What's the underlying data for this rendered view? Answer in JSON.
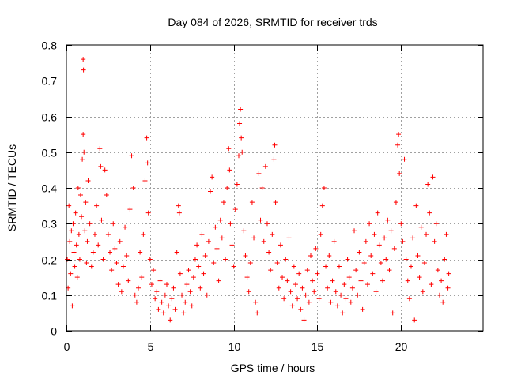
{
  "chart_data": {
    "type": "scatter",
    "title": "Day 084 of 2026, SRMTID for receiver trds",
    "xlabel": "GPS time / hours",
    "ylabel": "SRMTID / TECUs",
    "xlim": [
      0,
      24.9
    ],
    "ylim": [
      0,
      0.8
    ],
    "x_ticks": [
      0,
      5,
      10,
      15,
      20
    ],
    "x_tick_labels": [
      "0",
      "5",
      "10",
      "15",
      "20"
    ],
    "y_ticks": [
      0,
      0.1,
      0.2,
      0.3,
      0.4,
      0.5,
      0.6,
      0.7,
      0.8
    ],
    "y_tick_labels": [
      "0",
      "0.1",
      "0.2",
      "0.3",
      "0.4",
      "0.5",
      "0.6",
      "0.7",
      "0.8"
    ],
    "grid": true,
    "marker": "plus",
    "color": "#ff0000",
    "series": [
      {
        "name": "SRMTID",
        "points": [
          [
            0.05,
            0.2
          ],
          [
            0.1,
            0.12
          ],
          [
            0.15,
            0.35
          ],
          [
            0.2,
            0.25
          ],
          [
            0.25,
            0.16
          ],
          [
            0.3,
            0.28
          ],
          [
            0.35,
            0.07
          ],
          [
            0.4,
            0.3
          ],
          [
            0.45,
            0.22
          ],
          [
            0.5,
            0.18
          ],
          [
            0.55,
            0.33
          ],
          [
            0.6,
            0.24
          ],
          [
            0.65,
            0.15
          ],
          [
            0.7,
            0.4
          ],
          [
            0.75,
            0.27
          ],
          [
            0.8,
            0.2
          ],
          [
            0.85,
            0.38
          ],
          [
            0.9,
            0.32
          ],
          [
            0.95,
            0.48
          ],
          [
            1.0,
            0.55
          ],
          [
            1.0,
            0.76
          ],
          [
            1.02,
            0.73
          ],
          [
            1.05,
            0.5
          ],
          [
            1.1,
            0.28
          ],
          [
            1.15,
            0.36
          ],
          [
            1.2,
            0.19
          ],
          [
            1.25,
            0.25
          ],
          [
            1.3,
            0.42
          ],
          [
            1.4,
            0.3
          ],
          [
            1.5,
            0.18
          ],
          [
            1.6,
            0.22
          ],
          [
            1.7,
            0.27
          ],
          [
            1.8,
            0.35
          ],
          [
            1.9,
            0.24
          ],
          [
            2.0,
            0.51
          ],
          [
            2.05,
            0.46
          ],
          [
            2.1,
            0.31
          ],
          [
            2.2,
            0.2
          ],
          [
            2.3,
            0.45
          ],
          [
            2.4,
            0.38
          ],
          [
            2.5,
            0.27
          ],
          [
            2.6,
            0.22
          ],
          [
            2.7,
            0.17
          ],
          [
            2.8,
            0.3
          ],
          [
            2.9,
            0.23
          ],
          [
            3.0,
            0.19
          ],
          [
            3.1,
            0.13
          ],
          [
            3.2,
            0.25
          ],
          [
            3.3,
            0.11
          ],
          [
            3.4,
            0.18
          ],
          [
            3.5,
            0.29
          ],
          [
            3.6,
            0.21
          ],
          [
            3.7,
            0.14
          ],
          [
            3.8,
            0.34
          ],
          [
            3.9,
            0.49
          ],
          [
            4.0,
            0.4
          ],
          [
            4.1,
            0.1
          ],
          [
            4.2,
            0.08
          ],
          [
            4.3,
            0.12
          ],
          [
            4.4,
            0.22
          ],
          [
            4.5,
            0.15
          ],
          [
            4.6,
            0.27
          ],
          [
            4.7,
            0.42
          ],
          [
            4.8,
            0.54
          ],
          [
            4.85,
            0.47
          ],
          [
            4.9,
            0.33
          ],
          [
            5.0,
            0.2
          ],
          [
            5.1,
            0.13
          ],
          [
            5.2,
            0.17
          ],
          [
            5.3,
            0.09
          ],
          [
            5.4,
            0.11
          ],
          [
            5.5,
            0.06
          ],
          [
            5.6,
            0.14
          ],
          [
            5.7,
            0.08
          ],
          [
            5.8,
            0.05
          ],
          [
            5.9,
            0.1
          ],
          [
            6.0,
            0.13
          ],
          [
            6.1,
            0.07
          ],
          [
            6.2,
            0.03
          ],
          [
            6.3,
            0.09
          ],
          [
            6.4,
            0.12
          ],
          [
            6.5,
            0.06
          ],
          [
            6.6,
            0.22
          ],
          [
            6.7,
            0.35
          ],
          [
            6.75,
            0.33
          ],
          [
            6.8,
            0.16
          ],
          [
            6.9,
            0.1
          ],
          [
            7.0,
            0.05
          ],
          [
            7.1,
            0.08
          ],
          [
            7.2,
            0.13
          ],
          [
            7.3,
            0.17
          ],
          [
            7.4,
            0.11
          ],
          [
            7.5,
            0.07
          ],
          [
            7.6,
            0.15
          ],
          [
            7.7,
            0.2
          ],
          [
            7.8,
            0.24
          ],
          [
            7.9,
            0.18
          ],
          [
            8.0,
            0.12
          ],
          [
            8.1,
            0.27
          ],
          [
            8.2,
            0.16
          ],
          [
            8.3,
            0.21
          ],
          [
            8.4,
            0.1
          ],
          [
            8.5,
            0.25
          ],
          [
            8.6,
            0.39
          ],
          [
            8.7,
            0.43
          ],
          [
            8.8,
            0.19
          ],
          [
            8.9,
            0.29
          ],
          [
            9.0,
            0.23
          ],
          [
            9.1,
            0.14
          ],
          [
            9.2,
            0.31
          ],
          [
            9.3,
            0.26
          ],
          [
            9.4,
            0.36
          ],
          [
            9.5,
            0.2
          ],
          [
            9.6,
            0.4
          ],
          [
            9.7,
            0.51
          ],
          [
            9.75,
            0.45
          ],
          [
            9.8,
            0.3
          ],
          [
            9.9,
            0.24
          ],
          [
            10.0,
            0.18
          ],
          [
            10.1,
            0.34
          ],
          [
            10.2,
            0.41
          ],
          [
            10.3,
            0.49
          ],
          [
            10.35,
            0.58
          ],
          [
            10.4,
            0.62
          ],
          [
            10.45,
            0.54
          ],
          [
            10.5,
            0.5
          ],
          [
            10.6,
            0.28
          ],
          [
            10.7,
            0.21
          ],
          [
            10.8,
            0.15
          ],
          [
            10.9,
            0.11
          ],
          [
            11.0,
            0.19
          ],
          [
            11.1,
            0.36
          ],
          [
            11.2,
            0.26
          ],
          [
            11.3,
            0.08
          ],
          [
            11.4,
            0.05
          ],
          [
            11.5,
            0.44
          ],
          [
            11.6,
            0.31
          ],
          [
            11.7,
            0.4
          ],
          [
            11.8,
            0.25
          ],
          [
            11.9,
            0.46
          ],
          [
            12.0,
            0.3
          ],
          [
            12.1,
            0.22
          ],
          [
            12.2,
            0.17
          ],
          [
            12.3,
            0.27
          ],
          [
            12.4,
            0.48
          ],
          [
            12.45,
            0.52
          ],
          [
            12.5,
            0.36
          ],
          [
            12.6,
            0.19
          ],
          [
            12.7,
            0.12
          ],
          [
            12.8,
            0.24
          ],
          [
            12.9,
            0.15
          ],
          [
            13.0,
            0.09
          ],
          [
            13.1,
            0.2
          ],
          [
            13.2,
            0.14
          ],
          [
            13.3,
            0.26
          ],
          [
            13.4,
            0.11
          ],
          [
            13.5,
            0.07
          ],
          [
            13.6,
            0.18
          ],
          [
            13.7,
            0.13
          ],
          [
            13.8,
            0.09
          ],
          [
            13.9,
            0.16
          ],
          [
            14.0,
            0.06
          ],
          [
            14.1,
            0.12
          ],
          [
            14.2,
            0.03
          ],
          [
            14.3,
            0.1
          ],
          [
            14.4,
            0.17
          ],
          [
            14.5,
            0.08
          ],
          [
            14.6,
            0.21
          ],
          [
            14.7,
            0.14
          ],
          [
            14.8,
            0.11
          ],
          [
            14.9,
            0.23
          ],
          [
            15.0,
            0.16
          ],
          [
            15.1,
            0.09
          ],
          [
            15.2,
            0.27
          ],
          [
            15.3,
            0.35
          ],
          [
            15.4,
            0.4
          ],
          [
            15.5,
            0.18
          ],
          [
            15.6,
            0.12
          ],
          [
            15.7,
            0.21
          ],
          [
            15.8,
            0.08
          ],
          [
            15.9,
            0.14
          ],
          [
            16.0,
            0.25
          ],
          [
            16.1,
            0.11
          ],
          [
            16.2,
            0.07
          ],
          [
            16.3,
            0.18
          ],
          [
            16.4,
            0.1
          ],
          [
            16.5,
            0.05
          ],
          [
            16.6,
            0.13
          ],
          [
            16.7,
            0.09
          ],
          [
            16.8,
            0.2
          ],
          [
            16.9,
            0.15
          ],
          [
            17.0,
            0.08
          ],
          [
            17.1,
            0.12
          ],
          [
            17.2,
            0.28
          ],
          [
            17.3,
            0.17
          ],
          [
            17.4,
            0.1
          ],
          [
            17.5,
            0.22
          ],
          [
            17.6,
            0.14
          ],
          [
            17.7,
            0.06
          ],
          [
            17.8,
            0.19
          ],
          [
            17.9,
            0.25
          ],
          [
            18.0,
            0.13
          ],
          [
            18.1,
            0.3
          ],
          [
            18.2,
            0.21
          ],
          [
            18.3,
            0.16
          ],
          [
            18.4,
            0.27
          ],
          [
            18.5,
            0.11
          ],
          [
            18.6,
            0.33
          ],
          [
            18.7,
            0.24
          ],
          [
            18.8,
            0.19
          ],
          [
            18.9,
            0.14
          ],
          [
            19.0,
            0.26
          ],
          [
            19.1,
            0.2
          ],
          [
            19.2,
            0.31
          ],
          [
            19.3,
            0.17
          ],
          [
            19.4,
            0.28
          ],
          [
            19.5,
            0.05
          ],
          [
            19.6,
            0.23
          ],
          [
            19.7,
            0.36
          ],
          [
            19.8,
            0.52
          ],
          [
            19.85,
            0.55
          ],
          [
            19.9,
            0.44
          ],
          [
            20.0,
            0.3
          ],
          [
            20.1,
            0.25
          ],
          [
            20.2,
            0.48
          ],
          [
            20.3,
            0.2
          ],
          [
            20.4,
            0.14
          ],
          [
            20.5,
            0.09
          ],
          [
            20.6,
            0.18
          ],
          [
            20.7,
            0.26
          ],
          [
            20.8,
            0.03
          ],
          [
            20.9,
            0.35
          ],
          [
            21.0,
            0.21
          ],
          [
            21.1,
            0.15
          ],
          [
            21.2,
            0.29
          ],
          [
            21.3,
            0.11
          ],
          [
            21.4,
            0.19
          ],
          [
            21.5,
            0.27
          ],
          [
            21.6,
            0.41
          ],
          [
            21.7,
            0.33
          ],
          [
            21.8,
            0.13
          ],
          [
            21.9,
            0.43
          ],
          [
            22.0,
            0.25
          ],
          [
            22.1,
            0.3
          ],
          [
            22.2,
            0.17
          ],
          [
            22.3,
            0.1
          ],
          [
            22.4,
            0.14
          ],
          [
            22.5,
            0.08
          ],
          [
            22.6,
            0.2
          ],
          [
            22.7,
            0.27
          ],
          [
            22.8,
            0.12
          ],
          [
            22.85,
            0.16
          ]
        ]
      }
    ]
  }
}
